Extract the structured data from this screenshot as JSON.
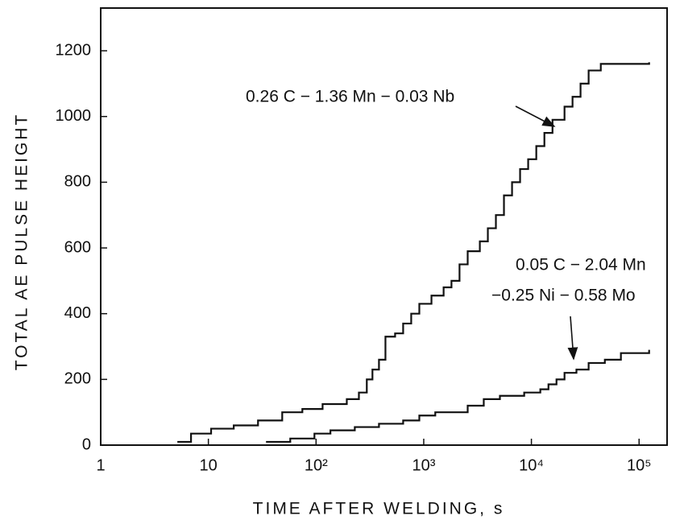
{
  "chart_data": {
    "type": "step",
    "x_label": "TIME AFTER WELDING, s",
    "y_label": "TOTAL AE PULSE HEIGHT",
    "xscale": "log",
    "xlim": [
      1,
      182000
    ],
    "ylim": [
      0,
      1330
    ],
    "xticks": [
      1,
      10,
      {
        "value": 100,
        "label": "10²"
      },
      {
        "value": 1000,
        "label": "10³"
      },
      {
        "value": 10000,
        "label": "10⁴"
      },
      {
        "value": 100000,
        "label": "10⁵"
      }
    ],
    "yticks": [
      0,
      200,
      400,
      600,
      800,
      1000,
      1200
    ],
    "series": [
      {
        "name": "0.26 C − 1.36 Mn − 0.03 Nb",
        "color": "#111111",
        "x": [
          5.15,
          6.9,
          10.6,
          17.2,
          28.9,
          48.5,
          74.6,
          115,
          193,
          250,
          296,
          334,
          384,
          441,
          542,
          644,
          765,
          910,
          1180,
          1530,
          1810,
          2150,
          2560,
          3320,
          3940,
          4680,
          5560,
          6610,
          7850,
          9330,
          11100,
          13200,
          15700,
          20300,
          24100,
          28600,
          34000,
          44100,
          124000
        ],
        "values": [
          10,
          35,
          50,
          60,
          75,
          100,
          110,
          125,
          140,
          160,
          200,
          230,
          260,
          330,
          340,
          370,
          400,
          430,
          455,
          480,
          500,
          550,
          590,
          620,
          660,
          700,
          760,
          800,
          840,
          870,
          910,
          950,
          990,
          1030,
          1060,
          1100,
          1140,
          1160,
          1165
        ]
      },
      {
        "name": "0.05 C − 2.04 Mn −0.25 Ni − 0.58 Mo",
        "color": "#111111",
        "x": [
          34.3,
          57.6,
          96.6,
          136,
          229,
          384,
          644,
          910,
          1280,
          2560,
          3610,
          5100,
          8570,
          12100,
          14400,
          17100,
          20300,
          26200,
          34000,
          48100,
          67800,
          124000
        ],
        "values": [
          10,
          20,
          35,
          45,
          55,
          65,
          75,
          90,
          100,
          120,
          140,
          150,
          160,
          170,
          185,
          200,
          220,
          230,
          250,
          260,
          280,
          290
        ]
      }
    ],
    "annotations": [
      {
        "lines": [
          "0.26 C − 1.36 Mn − 0.03 Nb"
        ]
      },
      {
        "lines": [
          "0.05 C − 2.04 Mn",
          "−0.25 Ni − 0.58 Mo"
        ]
      }
    ]
  }
}
